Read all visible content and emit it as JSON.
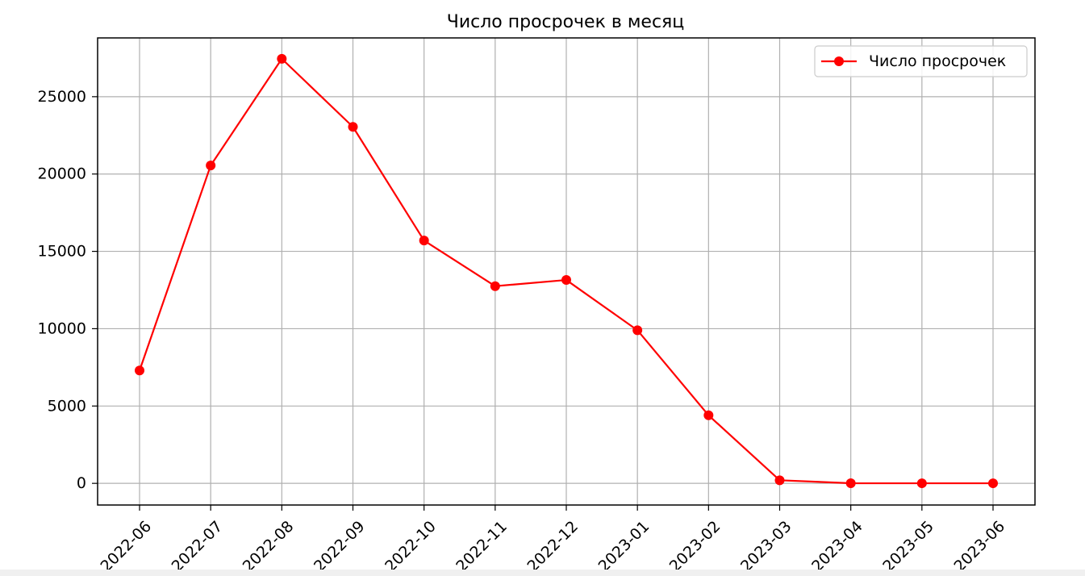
{
  "chart_data": {
    "type": "line",
    "title": "Число просрочек в месяц",
    "xlabel": "",
    "ylabel": "",
    "x": [
      "2022-06",
      "2022-07",
      "2022-08",
      "2022-09",
      "2022-10",
      "2022-11",
      "2022-12",
      "2023-01",
      "2023-02",
      "2023-03",
      "2023-04",
      "2023-05",
      "2023-06"
    ],
    "series": [
      {
        "name": "Число просрочек",
        "values": [
          7300,
          20550,
          27450,
          23050,
          15700,
          12750,
          13150,
          9900,
          4400,
          200,
          10,
          5,
          5
        ],
        "color": "#ff0000",
        "marker": "circle"
      }
    ],
    "ylim": [
      -1400,
      28800
    ],
    "yticks": [
      0,
      5000,
      10000,
      15000,
      20000,
      25000
    ],
    "grid": true,
    "legend_position": "top-right"
  }
}
